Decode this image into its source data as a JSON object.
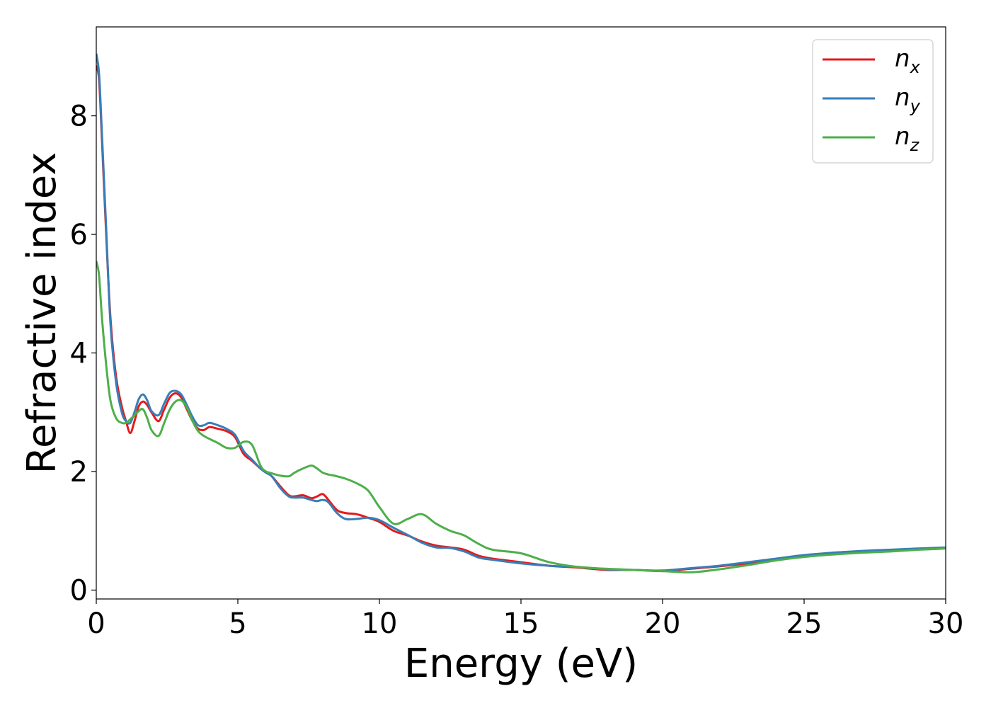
{
  "chart_data": {
    "type": "line",
    "xlabel": "Energy (eV)",
    "ylabel": "Refractive index",
    "xlim": [
      0,
      30
    ],
    "ylim": [
      -0.15,
      9.5
    ],
    "xticks": [
      0,
      5,
      10,
      15,
      20,
      25,
      30
    ],
    "yticks": [
      0,
      2,
      4,
      6,
      8
    ],
    "grid": false,
    "legend_position": "top-right",
    "series": [
      {
        "name": "n_x",
        "label_base": "n",
        "label_sub": "x",
        "color": "#e41a1c",
        "x": [
          0,
          0.1,
          0.2,
          0.35,
          0.5,
          0.7,
          0.9,
          1.05,
          1.2,
          1.35,
          1.5,
          1.65,
          1.8,
          1.95,
          2.2,
          2.4,
          2.6,
          2.8,
          3.0,
          3.2,
          3.4,
          3.6,
          3.8,
          4.0,
          4.3,
          4.6,
          4.9,
          5.2,
          5.5,
          5.8,
          6.0,
          6.2,
          6.5,
          6.8,
          7.0,
          7.3,
          7.6,
          7.8,
          8.0,
          8.2,
          8.5,
          8.8,
          9.2,
          9.6,
          10.0,
          10.5,
          11.0,
          11.5,
          12.0,
          12.5,
          13.0,
          13.5,
          14.0,
          15.0,
          16.0,
          17.0,
          18.0,
          19.0,
          20.0,
          21.0,
          22.0,
          23.0,
          24.0,
          25.0,
          26.0,
          27.0,
          28.0,
          29.0,
          30.0
        ],
        "values": [
          8.85,
          8.6,
          7.6,
          6.0,
          4.6,
          3.6,
          3.1,
          2.85,
          2.65,
          2.85,
          3.1,
          3.18,
          3.12,
          3.0,
          2.85,
          3.05,
          3.25,
          3.32,
          3.25,
          3.05,
          2.85,
          2.72,
          2.7,
          2.75,
          2.72,
          2.68,
          2.58,
          2.3,
          2.18,
          2.05,
          1.98,
          1.92,
          1.75,
          1.6,
          1.58,
          1.6,
          1.55,
          1.58,
          1.62,
          1.52,
          1.35,
          1.3,
          1.28,
          1.22,
          1.15,
          1.0,
          0.92,
          0.82,
          0.75,
          0.72,
          0.68,
          0.58,
          0.53,
          0.47,
          0.41,
          0.38,
          0.34,
          0.34,
          0.32,
          0.36,
          0.4,
          0.45,
          0.52,
          0.58,
          0.63,
          0.65,
          0.67,
          0.69,
          0.71
        ]
      },
      {
        "name": "n_y",
        "label_base": "n",
        "label_sub": "y",
        "color": "#377eb8",
        "x": [
          0,
          0.1,
          0.2,
          0.35,
          0.5,
          0.7,
          0.9,
          1.05,
          1.2,
          1.35,
          1.5,
          1.65,
          1.8,
          1.95,
          2.2,
          2.4,
          2.6,
          2.8,
          3.0,
          3.2,
          3.4,
          3.6,
          3.8,
          4.0,
          4.3,
          4.6,
          4.9,
          5.2,
          5.5,
          5.8,
          6.0,
          6.2,
          6.5,
          6.8,
          7.0,
          7.3,
          7.6,
          7.8,
          8.0,
          8.2,
          8.5,
          8.8,
          9.2,
          9.6,
          10.0,
          10.5,
          11.0,
          11.5,
          12.0,
          12.5,
          13.0,
          13.5,
          14.0,
          15.0,
          16.0,
          17.0,
          18.0,
          19.0,
          20.0,
          21.0,
          22.0,
          23.0,
          24.0,
          25.0,
          26.0,
          27.0,
          28.0,
          29.0,
          30.0
        ],
        "values": [
          9.05,
          8.7,
          7.7,
          6.1,
          4.5,
          3.5,
          3.0,
          2.85,
          2.82,
          3.0,
          3.22,
          3.3,
          3.2,
          3.02,
          2.95,
          3.15,
          3.33,
          3.36,
          3.3,
          3.12,
          2.92,
          2.78,
          2.78,
          2.82,
          2.78,
          2.72,
          2.62,
          2.35,
          2.2,
          2.05,
          1.98,
          1.92,
          1.72,
          1.58,
          1.56,
          1.56,
          1.52,
          1.5,
          1.52,
          1.48,
          1.3,
          1.2,
          1.2,
          1.22,
          1.18,
          1.05,
          0.93,
          0.8,
          0.72,
          0.71,
          0.65,
          0.55,
          0.51,
          0.45,
          0.41,
          0.39,
          0.35,
          0.34,
          0.33,
          0.37,
          0.41,
          0.47,
          0.53,
          0.59,
          0.63,
          0.66,
          0.68,
          0.7,
          0.72
        ]
      },
      {
        "name": "n_z",
        "label_base": "n",
        "label_sub": "z",
        "color": "#4daf4a",
        "x": [
          0,
          0.1,
          0.2,
          0.35,
          0.5,
          0.7,
          0.9,
          1.05,
          1.2,
          1.35,
          1.5,
          1.65,
          1.8,
          1.95,
          2.2,
          2.4,
          2.6,
          2.8,
          3.0,
          3.2,
          3.4,
          3.6,
          3.8,
          4.0,
          4.3,
          4.6,
          4.9,
          5.2,
          5.5,
          5.8,
          6.0,
          6.2,
          6.5,
          6.8,
          7.0,
          7.3,
          7.6,
          7.8,
          8.0,
          8.2,
          8.5,
          8.8,
          9.2,
          9.6,
          10.0,
          10.5,
          11.0,
          11.5,
          12.0,
          12.5,
          13.0,
          13.5,
          14.0,
          15.0,
          16.0,
          17.0,
          18.0,
          19.0,
          20.0,
          21.0,
          22.0,
          23.0,
          24.0,
          25.0,
          26.0,
          27.0,
          28.0,
          29.0,
          30.0
        ],
        "values": [
          5.55,
          5.3,
          4.6,
          3.8,
          3.2,
          2.9,
          2.82,
          2.82,
          2.88,
          2.95,
          3.02,
          3.05,
          2.9,
          2.7,
          2.6,
          2.82,
          3.05,
          3.18,
          3.2,
          3.08,
          2.85,
          2.68,
          2.6,
          2.55,
          2.48,
          2.4,
          2.4,
          2.5,
          2.45,
          2.1,
          2.0,
          1.97,
          1.93,
          1.92,
          1.98,
          2.05,
          2.1,
          2.05,
          1.98,
          1.95,
          1.92,
          1.88,
          1.8,
          1.68,
          1.4,
          1.12,
          1.2,
          1.28,
          1.12,
          1.0,
          0.92,
          0.78,
          0.68,
          0.62,
          0.47,
          0.39,
          0.36,
          0.34,
          0.32,
          0.3,
          0.35,
          0.42,
          0.5,
          0.56,
          0.6,
          0.63,
          0.65,
          0.68,
          0.7
        ]
      }
    ]
  }
}
